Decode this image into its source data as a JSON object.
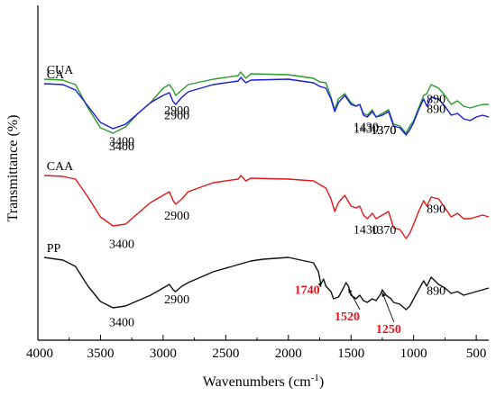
{
  "chart_data": {
    "type": "line",
    "xlabel": "Wavenumbers (cm",
    "xlabel_sup": "-1",
    "xlabel_tail": ")",
    "ylabel": "Transmittance (%)",
    "xlim": [
      4000,
      400
    ],
    "x_reversed": true,
    "y_ticks_shown": false,
    "grid": false,
    "x_ticks": [
      {
        "value": 4000,
        "label": "4000"
      },
      {
        "value": 3500,
        "label": "3500"
      },
      {
        "value": 3000,
        "label": "3000"
      },
      {
        "value": 2500,
        "label": "2500"
      },
      {
        "value": 2000,
        "label": "2000"
      },
      {
        "value": 1500,
        "label": "1500"
      },
      {
        "value": 1000,
        "label": "1000"
      },
      {
        "value": 500,
        "label": "500"
      }
    ],
    "series": [
      {
        "name": "CUA",
        "color": "#2a9a2a",
        "offset": 78,
        "label_at": 3930,
        "points": [
          [
            3950,
            10
          ],
          [
            3800,
            11
          ],
          [
            3700,
            16
          ],
          [
            3600,
            42
          ],
          [
            3500,
            64
          ],
          [
            3400,
            70
          ],
          [
            3300,
            63
          ],
          [
            3200,
            48
          ],
          [
            3100,
            36
          ],
          [
            3000,
            20
          ],
          [
            2950,
            16
          ],
          [
            2920,
            22
          ],
          [
            2900,
            28
          ],
          [
            2850,
            22
          ],
          [
            2800,
            16
          ],
          [
            2600,
            10
          ],
          [
            2400,
            6
          ],
          [
            2380,
            2
          ],
          [
            2340,
            9
          ],
          [
            2300,
            4
          ],
          [
            2000,
            5
          ],
          [
            1800,
            9
          ],
          [
            1750,
            13
          ],
          [
            1700,
            14
          ],
          [
            1660,
            30
          ],
          [
            1630,
            44
          ],
          [
            1600,
            32
          ],
          [
            1550,
            26
          ],
          [
            1500,
            36
          ],
          [
            1460,
            40
          ],
          [
            1430,
            38
          ],
          [
            1400,
            48
          ],
          [
            1370,
            50
          ],
          [
            1330,
            44
          ],
          [
            1300,
            52
          ],
          [
            1250,
            48
          ],
          [
            1200,
            44
          ],
          [
            1160,
            60
          ],
          [
            1110,
            62
          ],
          [
            1060,
            70
          ],
          [
            1030,
            62
          ],
          [
            1000,
            56
          ],
          [
            960,
            42
          ],
          [
            920,
            28
          ],
          [
            895,
            26
          ],
          [
            860,
            16
          ],
          [
            800,
            20
          ],
          [
            750,
            28
          ],
          [
            700,
            38
          ],
          [
            650,
            34
          ],
          [
            600,
            40
          ],
          [
            550,
            42
          ],
          [
            500,
            40
          ],
          [
            450,
            38
          ],
          [
            400,
            38
          ]
        ]
      },
      {
        "name": "CA",
        "color": "#1a1ae0",
        "offset": 78,
        "label_at": 3930,
        "points": [
          [
            3950,
            15
          ],
          [
            3800,
            16
          ],
          [
            3700,
            22
          ],
          [
            3600,
            40
          ],
          [
            3500,
            58
          ],
          [
            3400,
            65
          ],
          [
            3300,
            60
          ],
          [
            3200,
            48
          ],
          [
            3100,
            36
          ],
          [
            3000,
            28
          ],
          [
            2950,
            25
          ],
          [
            2920,
            35
          ],
          [
            2900,
            38
          ],
          [
            2850,
            30
          ],
          [
            2800,
            24
          ],
          [
            2600,
            16
          ],
          [
            2400,
            12
          ],
          [
            2380,
            8
          ],
          [
            2340,
            14
          ],
          [
            2300,
            11
          ],
          [
            2000,
            10
          ],
          [
            1800,
            14
          ],
          [
            1750,
            18
          ],
          [
            1700,
            20
          ],
          [
            1660,
            32
          ],
          [
            1630,
            46
          ],
          [
            1600,
            36
          ],
          [
            1550,
            28
          ],
          [
            1500,
            38
          ],
          [
            1460,
            40
          ],
          [
            1430,
            38
          ],
          [
            1400,
            50
          ],
          [
            1370,
            52
          ],
          [
            1330,
            46
          ],
          [
            1300,
            52
          ],
          [
            1250,
            50
          ],
          [
            1200,
            46
          ],
          [
            1160,
            62
          ],
          [
            1110,
            64
          ],
          [
            1060,
            72
          ],
          [
            1030,
            66
          ],
          [
            1000,
            58
          ],
          [
            960,
            44
          ],
          [
            920,
            32
          ],
          [
            895,
            40
          ],
          [
            860,
            30
          ],
          [
            800,
            32
          ],
          [
            750,
            40
          ],
          [
            700,
            50
          ],
          [
            650,
            48
          ],
          [
            600,
            54
          ],
          [
            550,
            56
          ],
          [
            500,
            52
          ],
          [
            450,
            50
          ],
          [
            400,
            52
          ]
        ]
      },
      {
        "name": "CAA",
        "color": "#e01818",
        "offset": 187,
        "label_at": 3930,
        "points": [
          [
            3950,
            8
          ],
          [
            3800,
            9
          ],
          [
            3700,
            12
          ],
          [
            3600,
            32
          ],
          [
            3500,
            54
          ],
          [
            3400,
            64
          ],
          [
            3300,
            62
          ],
          [
            3200,
            50
          ],
          [
            3100,
            38
          ],
          [
            3000,
            30
          ],
          [
            2950,
            26
          ],
          [
            2920,
            36
          ],
          [
            2900,
            40
          ],
          [
            2850,
            34
          ],
          [
            2800,
            26
          ],
          [
            2600,
            16
          ],
          [
            2400,
            12
          ],
          [
            2380,
            8
          ],
          [
            2340,
            14
          ],
          [
            2300,
            11
          ],
          [
            2000,
            12
          ],
          [
            1800,
            14
          ],
          [
            1750,
            18
          ],
          [
            1700,
            22
          ],
          [
            1660,
            34
          ],
          [
            1630,
            48
          ],
          [
            1600,
            38
          ],
          [
            1550,
            30
          ],
          [
            1500,
            42
          ],
          [
            1460,
            44
          ],
          [
            1430,
            42
          ],
          [
            1400,
            52
          ],
          [
            1370,
            56
          ],
          [
            1330,
            50
          ],
          [
            1300,
            56
          ],
          [
            1250,
            52
          ],
          [
            1200,
            48
          ],
          [
            1160,
            66
          ],
          [
            1110,
            68
          ],
          [
            1060,
            78
          ],
          [
            1030,
            72
          ],
          [
            1000,
            62
          ],
          [
            960,
            48
          ],
          [
            920,
            36
          ],
          [
            895,
            42
          ],
          [
            860,
            32
          ],
          [
            800,
            34
          ],
          [
            750,
            44
          ],
          [
            700,
            54
          ],
          [
            650,
            50
          ],
          [
            600,
            56
          ],
          [
            550,
            56
          ],
          [
            500,
            54
          ],
          [
            450,
            52
          ],
          [
            400,
            54
          ]
        ]
      },
      {
        "name": "PP",
        "color": "#111111",
        "offset": 280,
        "label_at": 3930,
        "points": [
          [
            3950,
            6
          ],
          [
            3800,
            9
          ],
          [
            3700,
            16
          ],
          [
            3600,
            38
          ],
          [
            3500,
            55
          ],
          [
            3400,
            62
          ],
          [
            3300,
            60
          ],
          [
            3200,
            54
          ],
          [
            3100,
            48
          ],
          [
            3000,
            40
          ],
          [
            2950,
            36
          ],
          [
            2920,
            42
          ],
          [
            2900,
            44
          ],
          [
            2850,
            38
          ],
          [
            2800,
            34
          ],
          [
            2600,
            22
          ],
          [
            2400,
            14
          ],
          [
            2300,
            10
          ],
          [
            2200,
            8
          ],
          [
            2000,
            6
          ],
          [
            1800,
            12
          ],
          [
            1760,
            22
          ],
          [
            1740,
            36
          ],
          [
            1720,
            30
          ],
          [
            1700,
            38
          ],
          [
            1660,
            44
          ],
          [
            1640,
            52
          ],
          [
            1600,
            50
          ],
          [
            1560,
            40
          ],
          [
            1540,
            34
          ],
          [
            1520,
            38
          ],
          [
            1500,
            48
          ],
          [
            1460,
            52
          ],
          [
            1430,
            48
          ],
          [
            1400,
            54
          ],
          [
            1370,
            56
          ],
          [
            1330,
            52
          ],
          [
            1300,
            54
          ],
          [
            1260,
            46
          ],
          [
            1250,
            42
          ],
          [
            1220,
            48
          ],
          [
            1180,
            52
          ],
          [
            1160,
            56
          ],
          [
            1110,
            58
          ],
          [
            1060,
            64
          ],
          [
            1030,
            60
          ],
          [
            1000,
            52
          ],
          [
            960,
            42
          ],
          [
            920,
            32
          ],
          [
            895,
            38
          ],
          [
            860,
            28
          ],
          [
            800,
            36
          ],
          [
            750,
            40
          ],
          [
            700,
            46
          ],
          [
            650,
            44
          ],
          [
            600,
            48
          ],
          [
            550,
            46
          ],
          [
            500,
            44
          ],
          [
            450,
            42
          ],
          [
            400,
            40
          ]
        ]
      }
    ],
    "peak_labels": [
      {
        "text": "3400",
        "x": 3330,
        "series": "CUA",
        "dy": 24,
        "highlight": false
      },
      {
        "text": "2900",
        "x": 2890,
        "series": "CUA",
        "dy": 22,
        "highlight": false
      },
      {
        "text": "1430",
        "x": 1380,
        "series": "CUA",
        "dy": 18,
        "highlight": false
      },
      {
        "text": "1370",
        "x": 1240,
        "series": "CUA",
        "dy": 24,
        "highlight": false
      },
      {
        "text": "890",
        "x": 820,
        "series": "CUA",
        "dy": 18,
        "highlight": false
      },
      {
        "text": "3400",
        "x": 3330,
        "series": "CA",
        "dy": 22,
        "highlight": false
      },
      {
        "text": "2900",
        "x": 2890,
        "series": "CA",
        "dy": 18,
        "highlight": false
      },
      {
        "text": "1430",
        "x": 1380,
        "series": "CA",
        "dy": 18,
        "highlight": false
      },
      {
        "text": "1370",
        "x": 1240,
        "series": "CA",
        "dy": 22,
        "highlight": false
      },
      {
        "text": "890",
        "x": 820,
        "series": "CA",
        "dy": 16,
        "highlight": false
      },
      {
        "text": "3400",
        "x": 3330,
        "series": "CAA",
        "dy": 26,
        "highlight": false
      },
      {
        "text": "2900",
        "x": 2890,
        "series": "CAA",
        "dy": 18,
        "highlight": false
      },
      {
        "text": "1430",
        "x": 1380,
        "series": "CAA",
        "dy": 18,
        "highlight": false
      },
      {
        "text": "1370",
        "x": 1240,
        "series": "CAA",
        "dy": 22,
        "highlight": false
      },
      {
        "text": "890",
        "x": 820,
        "series": "CAA",
        "dy": 16,
        "highlight": false
      },
      {
        "text": "3400",
        "x": 3330,
        "series": "PP",
        "dy": 22,
        "highlight": false
      },
      {
        "text": "2900",
        "x": 2890,
        "series": "PP",
        "dy": 14,
        "highlight": false
      },
      {
        "text": "890",
        "x": 820,
        "series": "PP",
        "dy": 14,
        "highlight": false
      },
      {
        "text": "1740",
        "x": 1850,
        "series": "PP",
        "dy": 36,
        "highlight": true,
        "arrow_to": 1740
      },
      {
        "text": "1520",
        "x": 1530,
        "series": "PP",
        "dy": 40,
        "highlight": true,
        "arrow_to": 1520
      },
      {
        "text": "1250",
        "x": 1200,
        "series": "PP",
        "dy": 40,
        "highlight": true,
        "arrow_to": 1250
      }
    ]
  }
}
